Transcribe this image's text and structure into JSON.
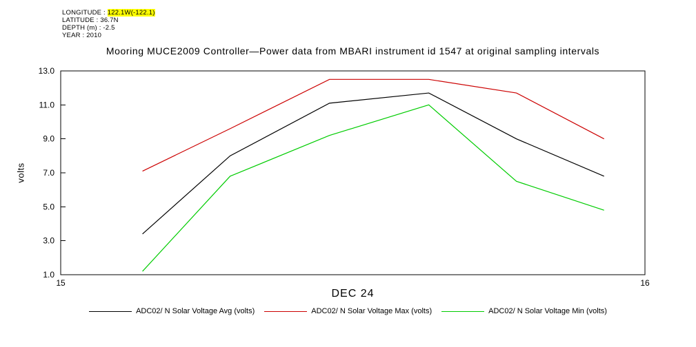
{
  "header": {
    "metadata": [
      {
        "label": "LONGITUDE :",
        "value": "122.1W(-122.1)"
      },
      {
        "label": "LATITUDE :",
        "value": "36.7N"
      },
      {
        "label": "DEPTH (m) :",
        "value": "-2.5"
      },
      {
        "label": "YEAR :",
        "value": "2010"
      }
    ],
    "title": "Mooring MUCE2009 Controller—Power data from MBARI instrument id 1547 at original sampling intervals"
  },
  "chart_data": {
    "type": "line",
    "title": "Mooring MUCE2009 Controller—Power data from MBARI instrument id 1547 at original sampling intervals",
    "xlabel": "DEC 24",
    "ylabel": "volts",
    "xlim": [
      15,
      16
    ],
    "ylim": [
      1.0,
      13.0
    ],
    "xticks": [
      15,
      16
    ],
    "xtick_labels": [
      "15",
      "16"
    ],
    "yticks": [
      1.0,
      3.0,
      5.0,
      7.0,
      9.0,
      11.0,
      13.0
    ],
    "ytick_labels": [
      "1.0",
      "3.0",
      "5.0",
      "7.0",
      "9.0",
      "11.0",
      "13.0"
    ],
    "grid": false,
    "legend_position": "bottom",
    "x": [
      15.14,
      15.29,
      15.46,
      15.63,
      15.78,
      15.93
    ],
    "series": [
      {
        "name": "ADC02/ N Solar Voltage Avg (volts)",
        "color": "#000000",
        "values": [
          3.4,
          8.0,
          11.1,
          11.7,
          9.0,
          6.8
        ]
      },
      {
        "name": "ADC02/ N Solar Voltage Max (volts)",
        "color": "#cc0000",
        "values": [
          7.1,
          9.6,
          12.5,
          12.5,
          11.7,
          9.0
        ]
      },
      {
        "name": "ADC02/ N Solar Voltage Min (volts)",
        "color": "#00cc00",
        "values": [
          1.2,
          6.8,
          9.2,
          11.0,
          6.5,
          4.8
        ]
      }
    ]
  }
}
